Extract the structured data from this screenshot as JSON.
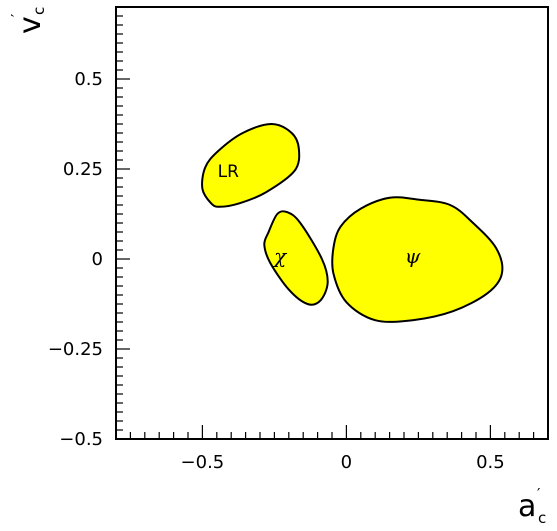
{
  "chart_data": {
    "type": "scatter",
    "xlabel": "a",
    "xlabel_prime": "′",
    "xlabel_sub": "c",
    "ylabel": "v",
    "ylabel_prime": "′",
    "ylabel_sub": "c",
    "xlim": [
      -0.8,
      0.7
    ],
    "ylim": [
      -0.5,
      0.7
    ],
    "x_major_ticks": [
      -0.5,
      0,
      0.5
    ],
    "x_tick_labels": [
      "−0.5",
      "0",
      "0.5"
    ],
    "y_major_ticks": [
      -0.5,
      -0.25,
      0,
      0.25,
      0.5
    ],
    "y_tick_labels": [
      "−0.5",
      "−0.25",
      "0",
      "0.25",
      "0.5"
    ],
    "grid": false,
    "fill_color": "#ffff00",
    "regions": [
      {
        "label": "LR",
        "label_pos": [
          -0.41,
          0.245
        ],
        "outline": [
          [
            -0.44,
            0.145
          ],
          [
            -0.37,
            0.155
          ],
          [
            -0.28,
            0.185
          ],
          [
            -0.18,
            0.245
          ],
          [
            -0.165,
            0.305
          ],
          [
            -0.19,
            0.35
          ],
          [
            -0.26,
            0.375
          ],
          [
            -0.36,
            0.35
          ],
          [
            -0.445,
            0.3
          ],
          [
            -0.49,
            0.255
          ],
          [
            -0.5,
            0.195
          ],
          [
            -0.47,
            0.155
          ]
        ]
      },
      {
        "label": "χ",
        "label_pos": [
          -0.23,
          0.005
        ],
        "outline": [
          [
            -0.27,
            0.075
          ],
          [
            -0.24,
            0.125
          ],
          [
            -0.205,
            0.13
          ],
          [
            -0.16,
            0.1
          ],
          [
            -0.085,
            0.0
          ],
          [
            -0.065,
            -0.065
          ],
          [
            -0.09,
            -0.115
          ],
          [
            -0.135,
            -0.125
          ],
          [
            -0.2,
            -0.085
          ],
          [
            -0.265,
            -0.01
          ],
          [
            -0.285,
            0.04
          ]
        ]
      },
      {
        "label": "ψ",
        "label_pos": [
          0.23,
          0.005
        ],
        "outline": [
          [
            -0.045,
            0.03
          ],
          [
            -0.02,
            0.09
          ],
          [
            0.05,
            0.14
          ],
          [
            0.15,
            0.17
          ],
          [
            0.25,
            0.165
          ],
          [
            0.36,
            0.15
          ],
          [
            0.44,
            0.1
          ],
          [
            0.52,
            0.03
          ],
          [
            0.54,
            -0.04
          ],
          [
            0.49,
            -0.095
          ],
          [
            0.37,
            -0.145
          ],
          [
            0.23,
            -0.17
          ],
          [
            0.1,
            -0.17
          ],
          [
            0.0,
            -0.12
          ],
          [
            -0.045,
            -0.04
          ]
        ]
      }
    ]
  }
}
